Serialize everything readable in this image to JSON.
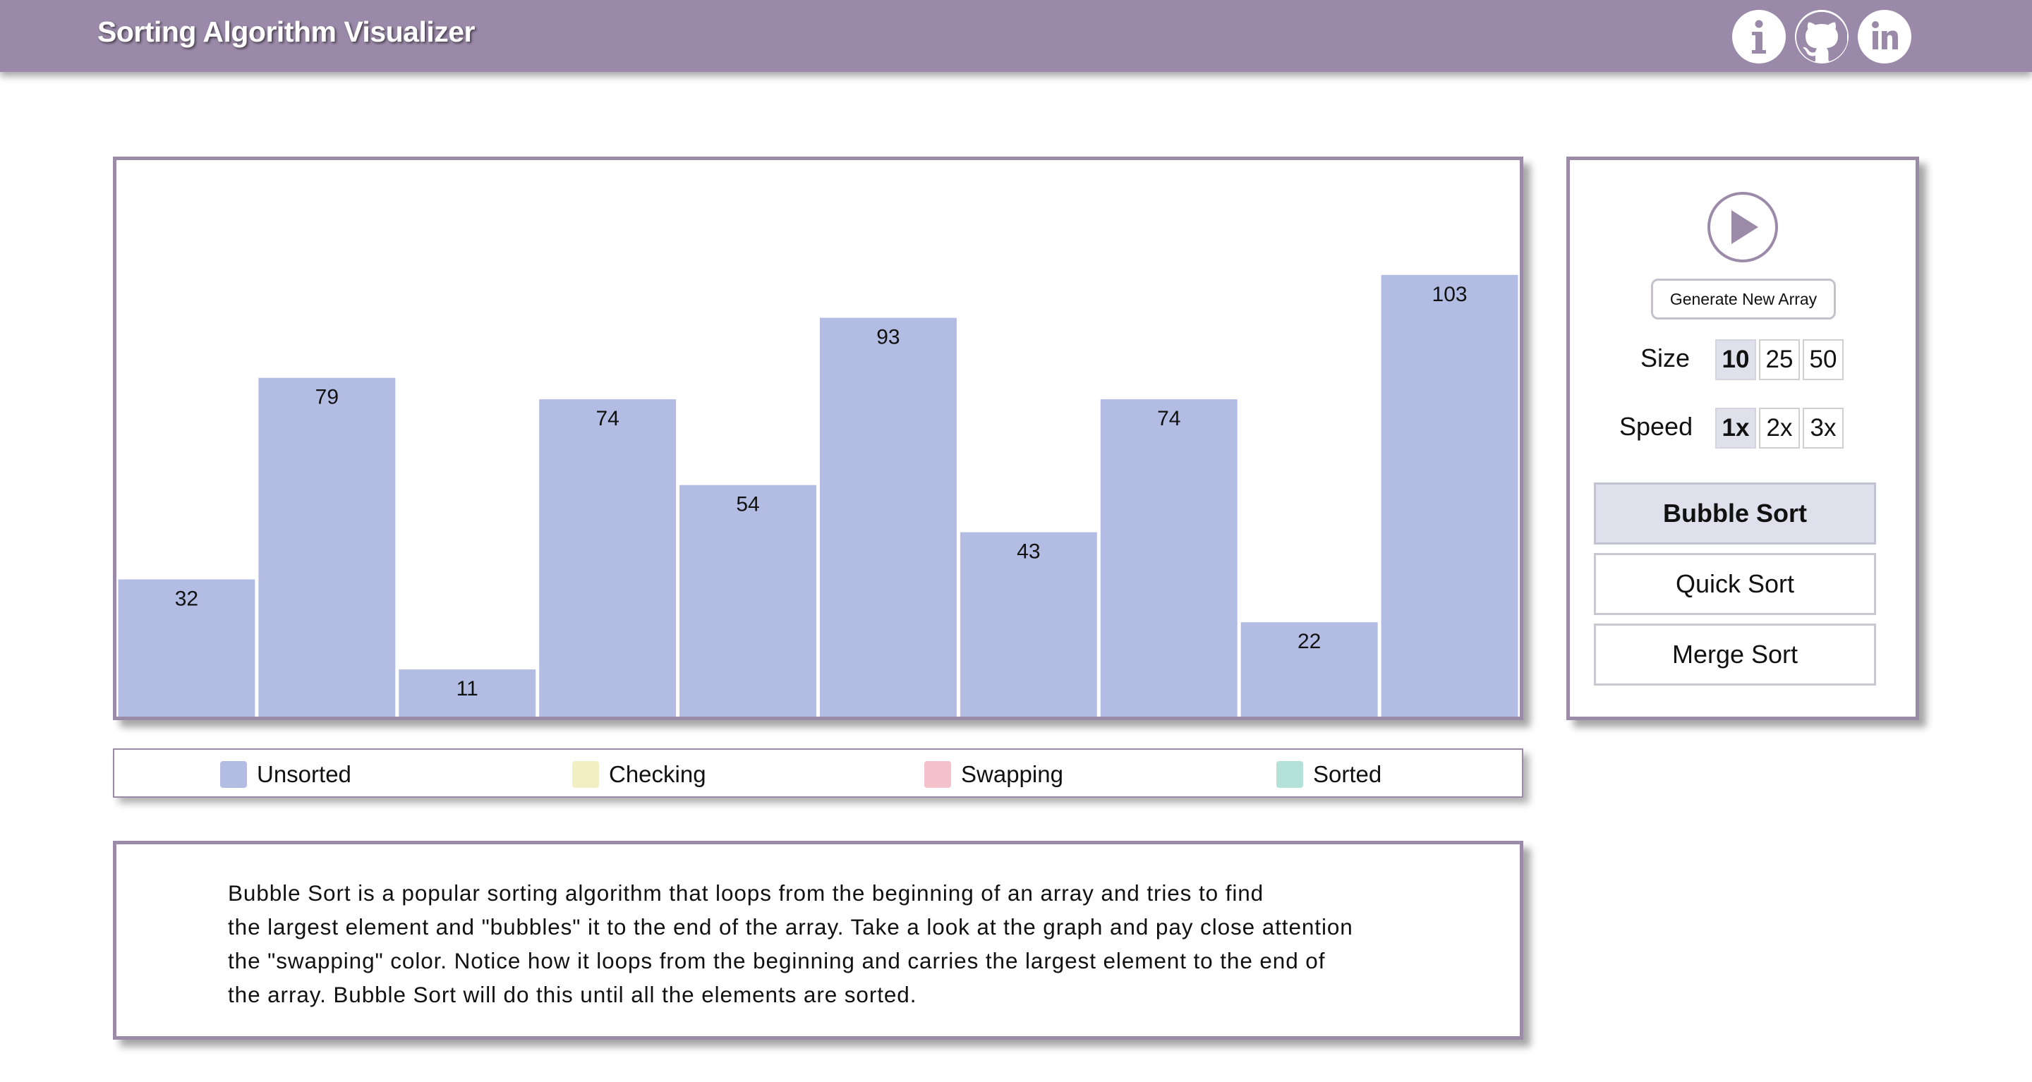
{
  "header": {
    "title": "Sorting Algorithm Visualizer",
    "icons": [
      "info-icon",
      "github-icon",
      "linkedin-icon"
    ],
    "background": "#9a89a8"
  },
  "chart_data": {
    "type": "bar",
    "values": [
      32,
      79,
      11,
      74,
      54,
      93,
      43,
      74,
      22,
      103
    ],
    "ylim": [
      0,
      130
    ],
    "bar_color": "#b3bce3"
  },
  "legend": {
    "items": [
      {
        "label": "Unsorted",
        "color": "#b3bce3"
      },
      {
        "label": "Checking",
        "color": "#f2efc4"
      },
      {
        "label": "Swapping",
        "color": "#f4c2cb"
      },
      {
        "label": "Sorted",
        "color": "#b5e2d8"
      }
    ]
  },
  "description": {
    "lines": [
      "Bubble Sort is a popular sorting algorithm that loops from the beginning of an array and tries to find",
      "the largest element and \"bubbles\" it to the end of the array. Take a look at the graph and pay close attention",
      "the \"swapping\" color. Notice how it loops from the beginning and carries the largest element to the end of",
      "the array. Bubble Sort will do this until all the elements are sorted."
    ]
  },
  "controls": {
    "play_icon": "play-icon",
    "generate_label": "Generate New Array",
    "size_label": "Size",
    "size_options": [
      "10",
      "25",
      "50"
    ],
    "size_selected": "10",
    "speed_label": "Speed",
    "speed_options": [
      "1x",
      "2x",
      "3x"
    ],
    "speed_selected": "1x",
    "algorithms": [
      "Bubble Sort",
      "Quick Sort",
      "Merge Sort"
    ],
    "algorithm_selected": "Bubble Sort"
  }
}
